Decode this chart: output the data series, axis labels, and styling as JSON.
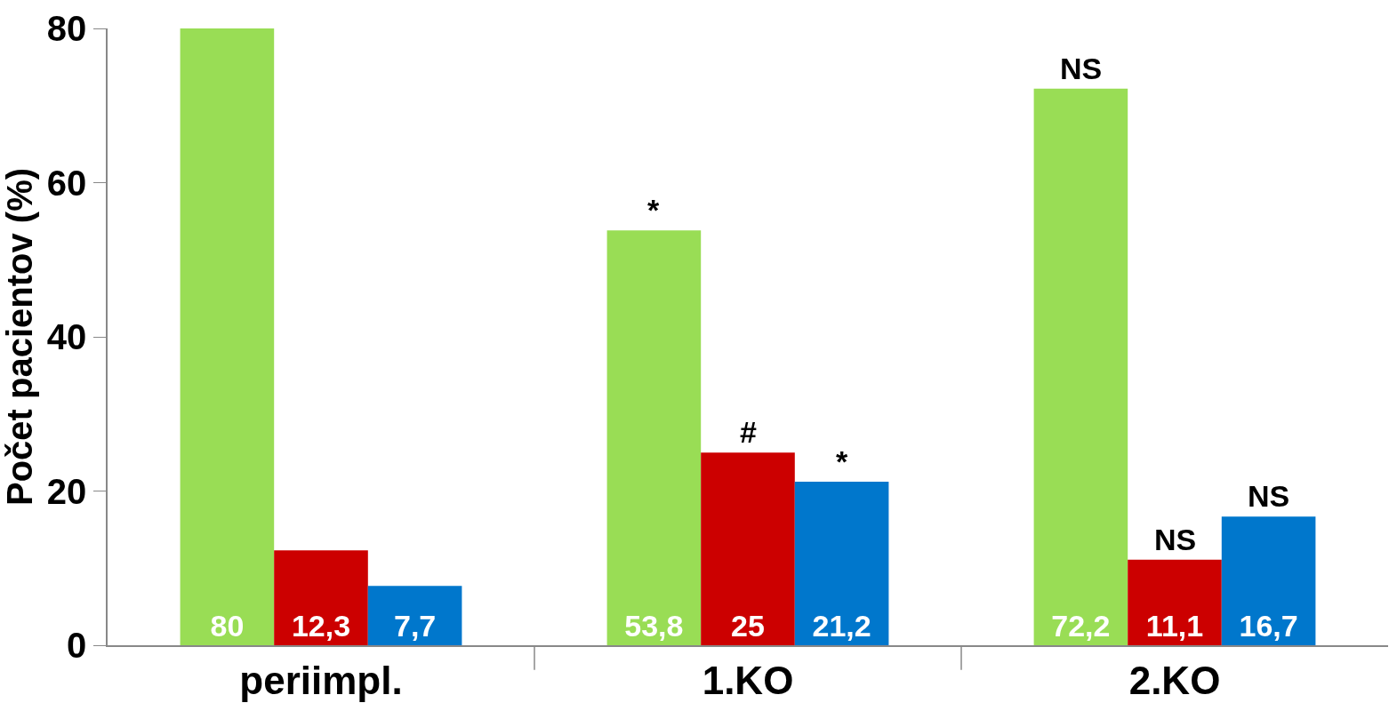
{
  "chart_data": {
    "type": "bar",
    "ylabel": "Počet pacientov (%)",
    "categories": [
      "periimpl.",
      "1.KO",
      "2.KO"
    ],
    "series": [
      {
        "color": "#99dd55",
        "values": [
          80,
          53.8,
          72.2
        ],
        "value_labels": [
          "80",
          "53,8",
          "72,2"
        ]
      },
      {
        "color": "#cc0000",
        "values": [
          12.3,
          25,
          11.1
        ],
        "value_labels": [
          "12,3",
          "25",
          "11,1"
        ]
      },
      {
        "color": "#0077cc",
        "values": [
          7.7,
          21.2,
          16.7
        ],
        "value_labels": [
          "7,7",
          "21,2",
          "16,7"
        ]
      }
    ],
    "ylim": [
      0,
      80
    ],
    "yticks": [
      0,
      20,
      40,
      60,
      80
    ],
    "annotations": [
      "*",
      "#",
      "*",
      "NS",
      "NS",
      "NS"
    ]
  }
}
